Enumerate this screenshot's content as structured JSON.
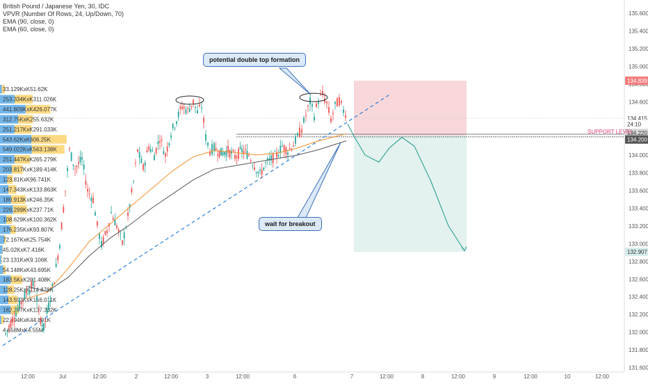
{
  "legend": {
    "title": "British Pound / Japanese Yen, 30, IDC",
    "lines": [
      "VPVR (Number Of Rows, 24, Up/Down, 70)",
      "EMA (90, close, 0)",
      "EMA (60, close, 0)"
    ]
  },
  "annotations": {
    "double_top": "potential double top formation",
    "breakout": "wait for breakout",
    "support": "SUPPORT LEVEL"
  },
  "colors": {
    "up": "#26a69a",
    "down": "#ef5350",
    "ema60": "#f5902d",
    "ema90": "#555555",
    "trend": "#2a7fdc",
    "stop_zone": "#f8d7da",
    "target_zone": "#e3f1ef",
    "vp_blue": "#5aa9e6",
    "vp_yellow": "#fbd46d",
    "projection": "#1e9a8a"
  },
  "chart_data": {
    "type": "candlestick",
    "symbol": "GBPJPY",
    "timeframe": "30",
    "y_range": [
      131.55,
      135.75
    ],
    "y_ticks": [
      "135.600",
      "135.400",
      "135.200",
      "135.000",
      "134.800",
      "134.600",
      "134.400",
      "134.200",
      "134.000",
      "133.800",
      "133.600",
      "133.400",
      "133.200",
      "133.000",
      "132.800",
      "132.600",
      "132.400",
      "132.200",
      "132.000",
      "131.800",
      "131.600"
    ],
    "x_ticks": [
      "12:00",
      "Jul",
      "12:00",
      "2",
      "12:00",
      "3",
      "12:00",
      "6",
      "7",
      "12:00",
      "8",
      "12:00",
      "9",
      "12:00",
      "10",
      "12:00"
    ],
    "price_tags": [
      {
        "text": "134.839",
        "bg": "#f47c7c",
        "color": "#ffffff"
      },
      {
        "text": "134.415",
        "bg": "#ffffff",
        "color": "#333333"
      },
      {
        "text": "24:10",
        "bg": "#ffffff",
        "color": "#333333"
      },
      {
        "text": "134.220",
        "bg": "#d9d9d9",
        "color": "#333333"
      },
      {
        "text": "134.200",
        "bg": "#555555",
        "color": "#ffffff"
      },
      {
        "text": "132.907",
        "bg": "#d6ecea",
        "color": "#333333"
      }
    ],
    "key_levels": {
      "support": 134.22,
      "stop": 134.839,
      "target": 132.907
    },
    "volume_profile": [
      {
        "label": "33.129KxK51.62K",
        "buy": 33.129,
        "sell": 51.62
      },
      {
        "label": "253.334KxK311.026K",
        "buy": 253.334,
        "sell": 311.026
      },
      {
        "label": "441.809KxK426.077K",
        "buy": 441.809,
        "sell": 426.077
      },
      {
        "label": "312.75KxK255.632K",
        "buy": 312.75,
        "sell": 255.632
      },
      {
        "label": "251.217KxK291.033K",
        "buy": 251.217,
        "sell": 291.033
      },
      {
        "label": "543.62KxK606.25K",
        "buy": 543.62,
        "sell": 606.25
      },
      {
        "label": "549.022KxK563.138K",
        "buy": 549.022,
        "sell": 563.138
      },
      {
        "label": "251.447KxK265.279K",
        "buy": 251.447,
        "sell": 265.279
      },
      {
        "label": "203.817KxK189.414K",
        "buy": 203.817,
        "sell": 189.414
      },
      {
        "label": "123.81KxK96.741K",
        "buy": 123.81,
        "sell": 96.741
      },
      {
        "label": "147.343KxK133.863K",
        "buy": 147.343,
        "sell": 133.863
      },
      {
        "label": "189.913KxK246.35K",
        "buy": 189.913,
        "sell": 246.35
      },
      {
        "label": "226.299KxK237.71K",
        "buy": 226.299,
        "sell": 237.71
      },
      {
        "label": "108.629KxK100.362K",
        "buy": 108.629,
        "sell": 100.362
      },
      {
        "label": "176.235KxK93.807K",
        "buy": 176.235,
        "sell": 93.807
      },
      {
        "label": "72.167KxK25.754K",
        "buy": 72.167,
        "sell": 25.754
      },
      {
        "label": "45.02KxK7.416K",
        "buy": 45.02,
        "sell": 7.416
      },
      {
        "label": "23.131KxK9.106K",
        "buy": 23.131,
        "sell": 9.106
      },
      {
        "label": "54.148KxK43.695K",
        "buy": 54.148,
        "sell": 43.695
      },
      {
        "label": "183.5KxK201.408K",
        "buy": 183.5,
        "sell": 201.408
      },
      {
        "label": "128.25KxK114.878K",
        "buy": 128.25,
        "sell": 114.878
      },
      {
        "label": "143.593KxK156.011K",
        "buy": 143.593,
        "sell": 156.011
      },
      {
        "label": "182.397KxK137.332K",
        "buy": 182.397,
        "sell": 137.332
      },
      {
        "label": "22.494KxK44.891K",
        "buy": 22.494,
        "sell": 44.891
      },
      {
        "label": "4.658MxK4.55M",
        "buy": 4.658,
        "sell": 4.55
      }
    ],
    "price_path": [
      [
        0,
        131.98
      ],
      [
        10,
        132.15
      ],
      [
        20,
        132.3
      ],
      [
        30,
        132.45
      ],
      [
        42,
        132.55
      ],
      [
        48,
        132.2
      ],
      [
        55,
        132.05
      ],
      [
        62,
        132.3
      ],
      [
        70,
        132.6
      ],
      [
        78,
        133.0
      ],
      [
        86,
        133.6
      ],
      [
        92,
        134.05
      ],
      [
        100,
        133.85
      ],
      [
        110,
        133.95
      ],
      [
        118,
        133.6
      ],
      [
        126,
        133.5
      ],
      [
        132,
        133.2
      ],
      [
        138,
        132.98
      ],
      [
        146,
        133.15
      ],
      [
        152,
        133.35
      ],
      [
        160,
        133.2
      ],
      [
        168,
        133.0
      ],
      [
        176,
        133.3
      ],
      [
        184,
        133.7
      ],
      [
        190,
        134.05
      ],
      [
        198,
        133.85
      ],
      [
        206,
        134.1
      ],
      [
        214,
        134.0
      ],
      [
        222,
        134.2
      ],
      [
        230,
        134.0
      ],
      [
        238,
        134.25
      ],
      [
        246,
        134.4
      ],
      [
        254,
        134.55
      ],
      [
        262,
        134.5
      ],
      [
        270,
        134.6
      ],
      [
        276,
        134.48
      ],
      [
        282,
        134.55
      ],
      [
        288,
        134.2
      ],
      [
        294,
        134.05
      ],
      [
        300,
        134.08
      ],
      [
        310,
        134.02
      ],
      [
        320,
        134.05
      ],
      [
        330,
        133.98
      ],
      [
        340,
        134.05
      ],
      [
        350,
        134.0
      ],
      [
        358,
        133.88
      ],
      [
        366,
        133.78
      ],
      [
        374,
        133.9
      ],
      [
        382,
        133.95
      ],
      [
        390,
        134.0
      ],
      [
        398,
        134.1
      ],
      [
        406,
        134.05
      ],
      [
        414,
        134.12
      ],
      [
        420,
        134.2
      ],
      [
        426,
        134.3
      ],
      [
        432,
        134.45
      ],
      [
        438,
        134.6
      ],
      [
        444,
        134.45
      ],
      [
        450,
        134.62
      ],
      [
        456,
        134.68
      ],
      [
        462,
        134.58
      ],
      [
        468,
        134.4
      ],
      [
        474,
        134.55
      ],
      [
        480,
        134.62
      ],
      [
        486,
        134.5
      ],
      [
        492,
        134.45
      ]
    ],
    "ema60": [
      [
        30,
        132.38
      ],
      [
        60,
        132.45
      ],
      [
        90,
        132.72
      ],
      [
        120,
        133.02
      ],
      [
        150,
        133.22
      ],
      [
        180,
        133.42
      ],
      [
        210,
        133.62
      ],
      [
        240,
        133.82
      ],
      [
        270,
        133.98
      ],
      [
        300,
        134.05
      ],
      [
        330,
        134.03
      ],
      [
        360,
        134.0
      ],
      [
        390,
        134.02
      ],
      [
        420,
        134.08
      ],
      [
        450,
        134.16
      ],
      [
        490,
        134.24
      ]
    ],
    "ema90": [
      [
        30,
        132.52
      ],
      [
        60,
        132.46
      ],
      [
        90,
        132.62
      ],
      [
        120,
        132.86
      ],
      [
        150,
        133.06
      ],
      [
        180,
        133.22
      ],
      [
        210,
        133.4
      ],
      [
        240,
        133.56
      ],
      [
        270,
        133.72
      ],
      [
        300,
        133.84
      ],
      [
        330,
        133.88
      ],
      [
        360,
        133.92
      ],
      [
        390,
        133.96
      ],
      [
        420,
        134.0
      ],
      [
        450,
        134.06
      ],
      [
        490,
        134.16
      ]
    ],
    "projection": [
      [
        500,
        134.35
      ],
      [
        510,
        134.2
      ],
      [
        525,
        134.0
      ],
      [
        545,
        133.92
      ],
      [
        560,
        134.08
      ],
      [
        578,
        134.2
      ],
      [
        596,
        134.1
      ],
      [
        620,
        133.7
      ],
      [
        645,
        133.2
      ],
      [
        668,
        132.92
      ]
    ]
  }
}
